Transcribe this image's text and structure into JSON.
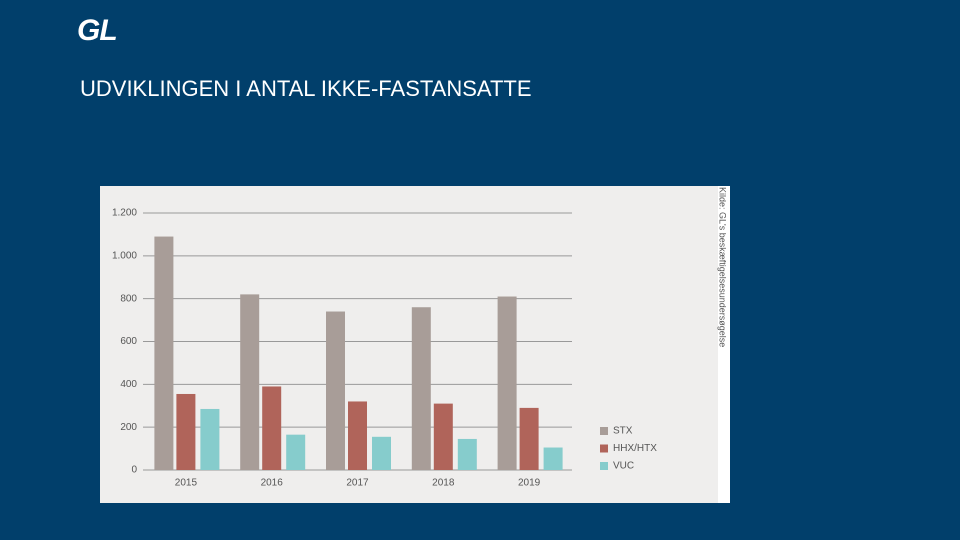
{
  "logo": "GL",
  "title": "UDVIKLINGEN I ANTAL IKKE-FASTANSATTE",
  "chart_data": {
    "type": "bar",
    "source": "Kilde: GL's beskæftigelsesundersøgelse",
    "categories": [
      "2015",
      "2016",
      "2017",
      "2018",
      "2019"
    ],
    "series": [
      {
        "name": "STX",
        "color": "#a89d98",
        "values": [
          1090,
          820,
          740,
          760,
          810
        ]
      },
      {
        "name": "HHX/HTX",
        "color": "#b0645a",
        "values": [
          355,
          390,
          320,
          310,
          290
        ]
      },
      {
        "name": "VUC",
        "color": "#86cccc",
        "values": [
          285,
          165,
          155,
          145,
          105
        ]
      }
    ],
    "ylim": [
      0,
      1200
    ],
    "yticks": [
      0,
      200,
      400,
      600,
      800,
      {
        "value": 1000,
        "label": "1.000"
      },
      {
        "value": 1200,
        "label": "1.200"
      }
    ],
    "grid": true,
    "legend": "right"
  }
}
